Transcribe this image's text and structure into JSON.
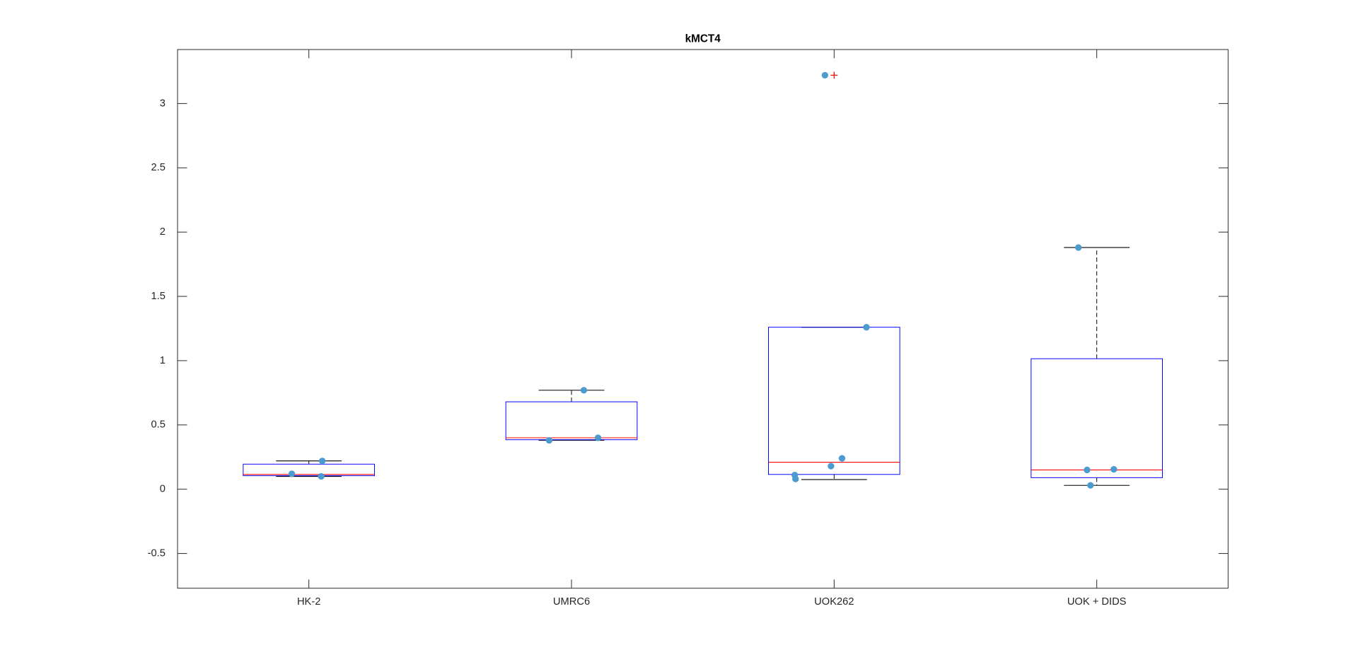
{
  "chart_data": {
    "type": "box",
    "title": "kMCT4",
    "categories": [
      "HK-2",
      "UMRC6",
      "UOK262",
      "UOK + DIDS"
    ],
    "boxes": [
      {
        "whisker_low": 0.1,
        "q1": 0.105,
        "median": 0.115,
        "q3": 0.195,
        "whisker_high": 0.22,
        "outliers": []
      },
      {
        "whisker_low": 0.38,
        "q1": 0.385,
        "median": 0.4,
        "q3": 0.68,
        "whisker_high": 0.77,
        "outliers": []
      },
      {
        "whisker_low": 0.075,
        "q1": 0.115,
        "median": 0.21,
        "q3": 1.26,
        "whisker_high": 1.26,
        "outliers": [
          3.22
        ]
      },
      {
        "whisker_low": 0.03,
        "q1": 0.09,
        "median": 0.15,
        "q3": 1.015,
        "whisker_high": 1.88,
        "outliers": []
      }
    ],
    "box_color": "#0000ff",
    "median_color": "#ff0000",
    "whisker_color": "#000000",
    "outlier_color": "#ff0000",
    "points": {
      "color": "#4c9bd0",
      "x": [
        1.051,
        0.935,
        1.047,
        2.047,
        1.915,
        2.101,
        2.965,
        3.123,
        3.03,
        2.988,
        2.85,
        2.853,
        3.93,
        3.963,
        4.065,
        3.976
      ],
      "y": [
        0.22,
        0.12,
        0.1,
        0.77,
        0.38,
        0.4,
        3.22,
        1.26,
        0.24,
        0.18,
        0.11,
        0.08,
        1.88,
        0.15,
        0.155,
        0.03
      ]
    },
    "xlim": [
      0.5,
      4.5
    ],
    "ylim": [
      -0.77,
      3.42
    ],
    "yticks": [
      -0.5,
      0,
      0.5,
      1,
      1.5,
      2,
      2.5,
      3
    ]
  }
}
